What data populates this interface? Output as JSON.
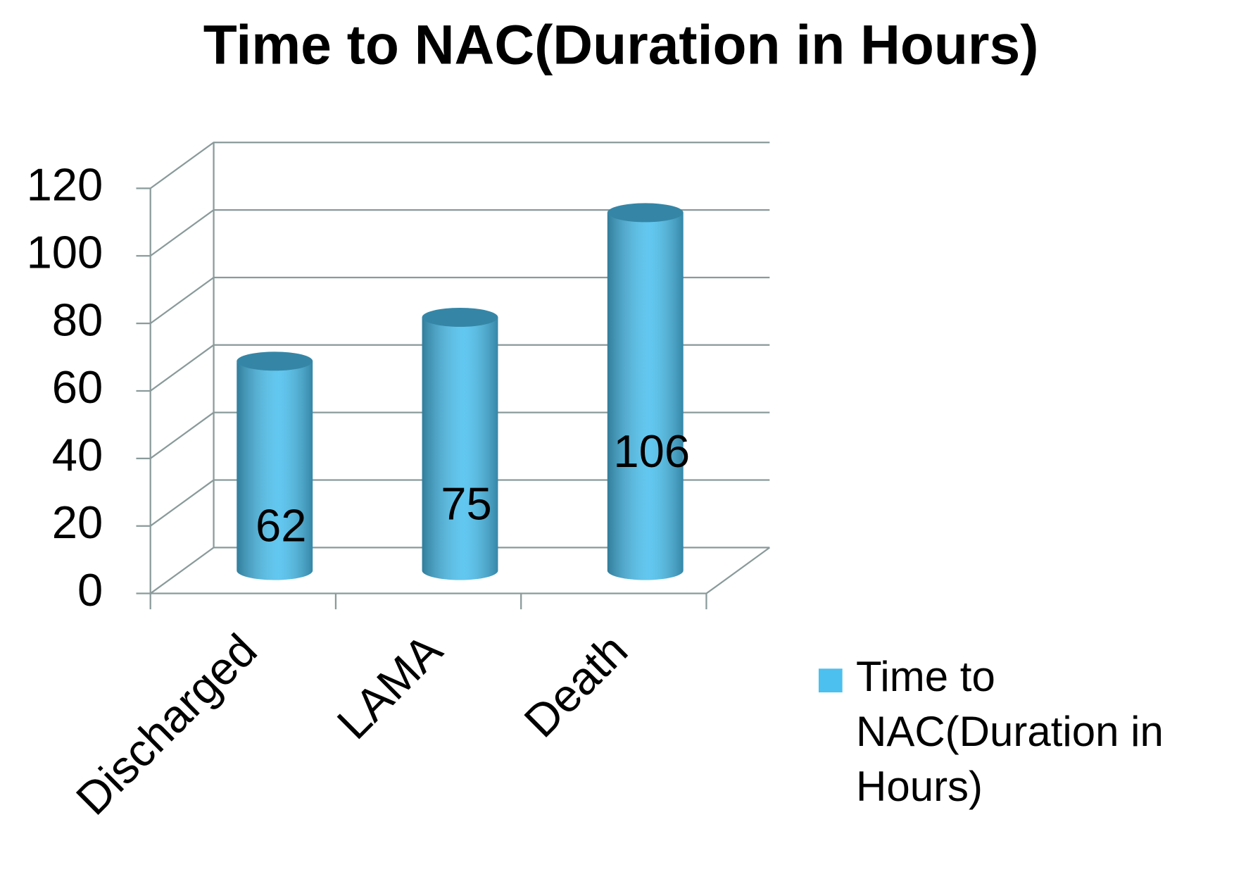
{
  "chart_data": {
    "type": "bar3d",
    "title": "Time to NAC(Duration in Hours)",
    "categories": [
      "Discharged",
      "LAMA",
      "Death"
    ],
    "series": [
      {
        "name": "Time to NAC(Duration in Hours)",
        "color": "#4cc0ee",
        "values": [
          62,
          75,
          106
        ]
      }
    ],
    "ylim": [
      0,
      120
    ],
    "yticks": [
      0,
      20,
      40,
      60,
      80,
      100,
      120
    ],
    "grid": true,
    "legend": "right"
  }
}
